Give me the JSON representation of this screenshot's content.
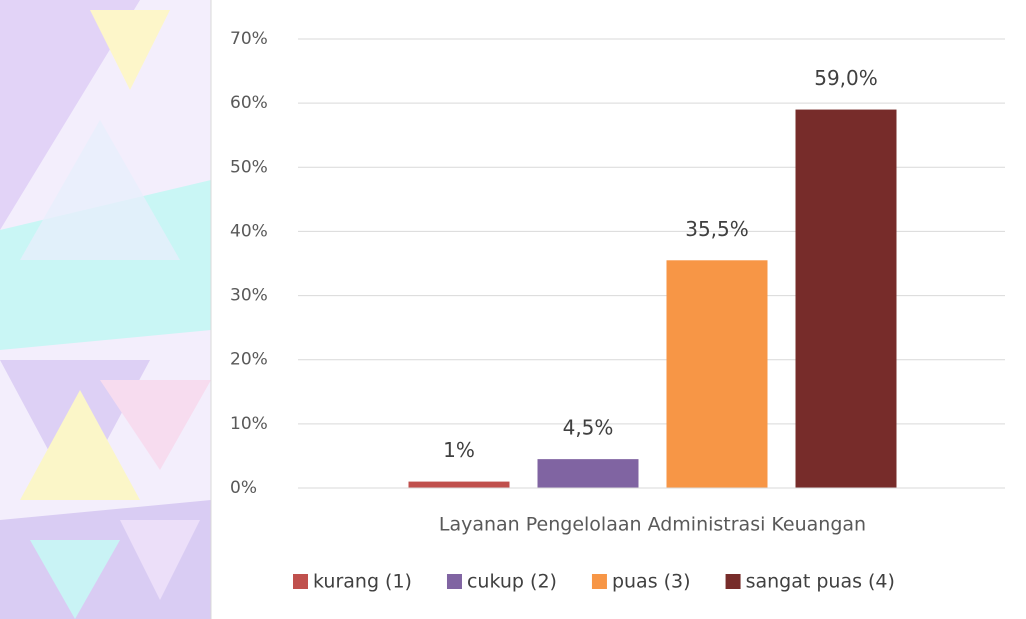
{
  "chart_data": {
    "type": "bar",
    "categories": [
      "Layanan Pengelolaan Administrasi Keuangan"
    ],
    "series": [
      {
        "name": "kurang (1)",
        "color": "#c0504d",
        "values": [
          1
        ],
        "value_labels": [
          "1%"
        ]
      },
      {
        "name": "cukup (2)",
        "color": "#8064a2",
        "values": [
          4.5
        ],
        "value_labels": [
          "4,5%"
        ]
      },
      {
        "name": "puas (3)",
        "color": "#f79646",
        "values": [
          35.5
        ],
        "value_labels": [
          "35,5%"
        ]
      },
      {
        "name": "sangat puas (4)",
        "color": "#772c2a",
        "values": [
          59
        ],
        "value_labels": [
          "59,0%"
        ]
      }
    ],
    "ylim": [
      0,
      70
    ],
    "yticks": [
      {
        "value": 0,
        "label": "0%"
      },
      {
        "value": 10,
        "label": "10%"
      },
      {
        "value": 20,
        "label": "20%"
      },
      {
        "value": 30,
        "label": "30%"
      },
      {
        "value": 40,
        "label": "40%"
      },
      {
        "value": 50,
        "label": "50%"
      },
      {
        "value": 60,
        "label": "60%"
      },
      {
        "value": 70,
        "label": "70%"
      }
    ],
    "grid": true,
    "legend": "bottom"
  }
}
